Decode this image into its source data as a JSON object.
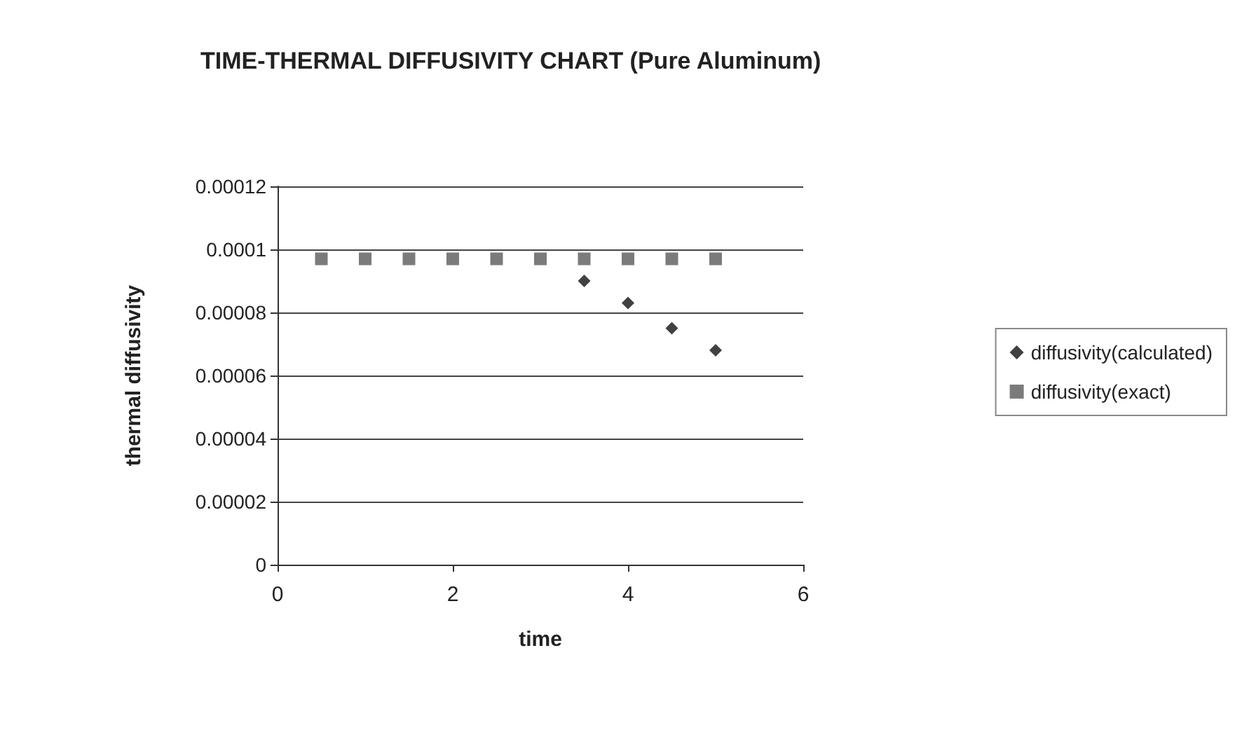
{
  "chart_data": {
    "type": "scatter",
    "title": "TIME-THERMAL DIFFUSIVITY CHART (Pure Aluminum)",
    "xlabel": "time",
    "ylabel": "thermal diffusivity",
    "series": [
      {
        "name": "diffusivity(calculated)",
        "color": "#111111",
        "marker": "diamond",
        "x": [
          3.5,
          4,
          4.5,
          5
        ],
        "values": [
          9e-05,
          8.3e-05,
          7.5e-05,
          6.8e-05
        ]
      },
      {
        "name": "diffusivity(exact)",
        "color": "#5a5a5a",
        "marker": "square",
        "x": [
          0.5,
          1,
          1.5,
          2,
          2.5,
          3,
          3.5,
          4,
          4.5,
          5
        ],
        "values": [
          9.7e-05,
          9.7e-05,
          9.7e-05,
          9.7e-05,
          9.7e-05,
          9.7e-05,
          9.7e-05,
          9.7e-05,
          9.7e-05,
          9.7e-05
        ]
      }
    ],
    "xlim": [
      0,
      6
    ],
    "xticks": [
      0,
      2,
      4,
      6
    ],
    "ylim": [
      0,
      0.00012
    ],
    "yticks": [
      0,
      {
        "value": 2e-05,
        "label": "0.00002"
      },
      {
        "value": 4e-05,
        "label": "0.00004"
      },
      {
        "value": 6e-05,
        "label": "0.00006"
      },
      {
        "value": 8e-05,
        "label": "0.00008"
      },
      0.0001,
      0.00012
    ],
    "grid": "y",
    "legend": "right"
  }
}
